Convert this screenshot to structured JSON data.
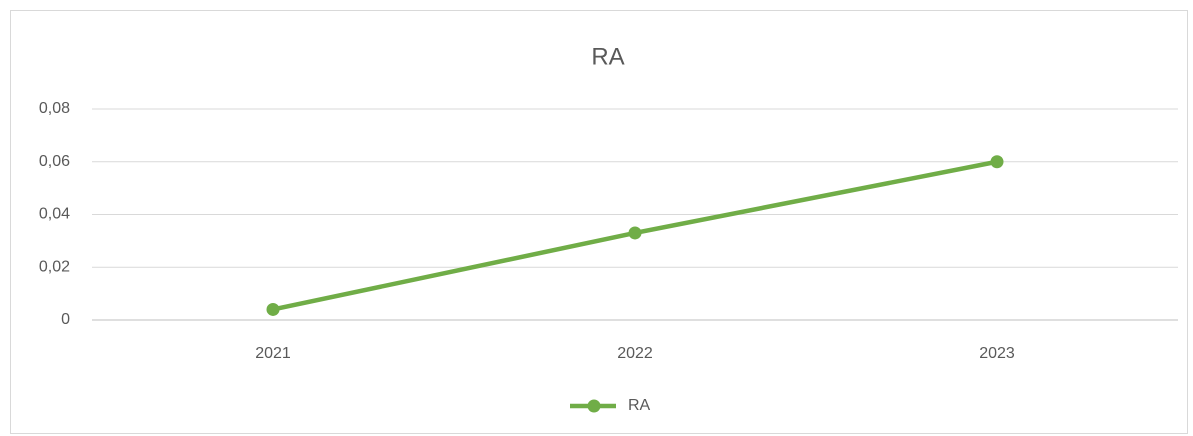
{
  "chart_data": {
    "type": "line",
    "title": "RA",
    "categories": [
      "2021",
      "2022",
      "2023"
    ],
    "series": [
      {
        "name": "RA",
        "color": "#70ad47",
        "values": [
          0.004,
          0.033,
          0.06
        ]
      }
    ],
    "ylim": [
      0,
      0.08
    ],
    "yticks": [
      0,
      {
        "value": 0.02,
        "label": "0,02"
      },
      {
        "value": 0.04,
        "label": "0,04"
      },
      {
        "value": 0.06,
        "label": "0,06"
      },
      {
        "value": 0.08,
        "label": "0,08"
      }
    ],
    "grid": true,
    "legend": "bottom"
  }
}
